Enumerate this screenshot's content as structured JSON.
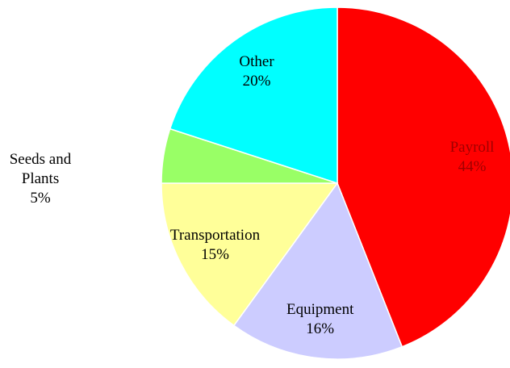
{
  "chart_data": {
    "type": "pie",
    "categories": [
      "Payroll",
      "Equipment",
      "Transportation",
      "Seeds and Plants",
      "Other"
    ],
    "values": [
      44,
      16,
      15,
      5,
      20
    ],
    "value_labels": [
      "44%",
      "16%",
      "15%",
      "5%",
      "20%"
    ],
    "colors": [
      "#ff0000",
      "#ccccff",
      "#ffff99",
      "#99ff66",
      "#00ffff"
    ]
  }
}
